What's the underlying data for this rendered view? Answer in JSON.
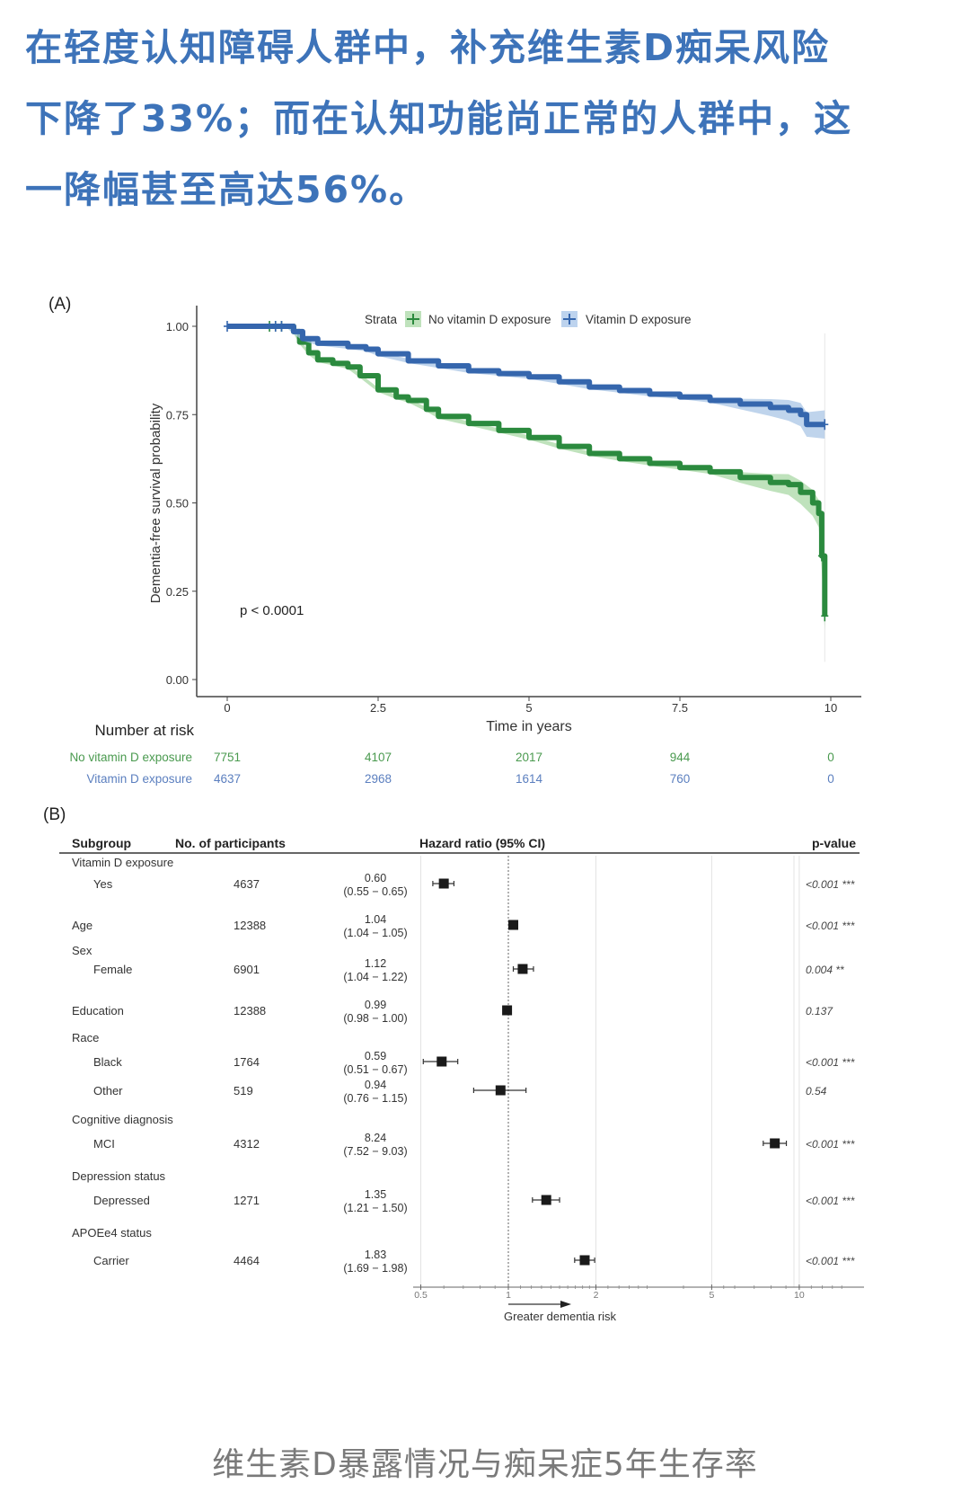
{
  "headline": {
    "lines": [
      "在轻度认知障碍人群中，补充维生素D痴呆风险",
      "下降了33%；而在认知功能尚正常的人群中，这",
      "一降幅甚至高达56%。"
    ]
  },
  "caption": "维生素D暴露情况与痴呆症5年生存率",
  "colors": {
    "headline": "#3d73b9",
    "no_vitd": "#2b8a3e",
    "no_vitd_band": "#a9d8a6",
    "vitd": "#3566ad",
    "vitd_band": "#a9c6e6",
    "risk_no_vitd_text": "#4a9a4f",
    "risk_vitd_text": "#5b7fbf"
  },
  "chart_data": [
    {
      "panel_label": "(A)",
      "type": "line",
      "title": "",
      "xlabel": "Time in years",
      "ylabel": "Dementia-free survival probability",
      "xlim": [
        0,
        10
      ],
      "ylim": [
        0,
        1
      ],
      "xticks": [
        "0",
        "2.5",
        "5",
        "7.5",
        "10"
      ],
      "xtick_values": [
        0,
        2.5,
        5,
        7.5,
        10
      ],
      "yticks": [
        "0.00",
        "0.25",
        "0.50",
        "0.75",
        "1.00"
      ],
      "ytick_values": [
        0,
        0.25,
        0.5,
        0.75,
        1.0
      ],
      "grid": false,
      "legend": {
        "title": "Strata",
        "placement": "top-right",
        "entries": [
          "No vitamin D exposure",
          "Vitamin D exposure"
        ]
      },
      "annotation": "p < 0.0001",
      "series": [
        {
          "name": "No vitamin D exposure",
          "x": [
            0,
            0.6,
            1.0,
            1.1,
            1.2,
            1.35,
            1.5,
            1.75,
            2.0,
            2.2,
            2.5,
            2.8,
            3.0,
            3.3,
            3.5,
            4.0,
            4.5,
            5.0,
            5.5,
            6.0,
            6.5,
            7.0,
            7.5,
            8.0,
            8.5,
            9.0,
            9.3,
            9.5,
            9.7,
            9.8,
            9.85,
            9.9
          ],
          "y": [
            1.0,
            1.0,
            1.0,
            0.985,
            0.955,
            0.925,
            0.905,
            0.895,
            0.885,
            0.86,
            0.82,
            0.8,
            0.79,
            0.765,
            0.745,
            0.725,
            0.705,
            0.685,
            0.66,
            0.64,
            0.625,
            0.612,
            0.6,
            0.588,
            0.572,
            0.558,
            0.552,
            0.53,
            0.5,
            0.47,
            0.35,
            0.18
          ],
          "censor_marks_x": [
            0.7,
            0.8,
            0.9,
            9.85,
            9.9
          ],
          "censor_marks_y": [
            1.0,
            1.0,
            1.0,
            0.35,
            0.18
          ]
        },
        {
          "name": "Vitamin D exposure",
          "x": [
            0,
            0.6,
            1.0,
            1.1,
            1.25,
            1.5,
            2.0,
            2.3,
            2.5,
            3.0,
            3.5,
            4.0,
            4.5,
            5.0,
            5.5,
            6.0,
            6.5,
            7.0,
            7.5,
            8.0,
            8.5,
            9.0,
            9.3,
            9.5,
            9.6,
            9.9
          ],
          "y": [
            1.0,
            1.0,
            1.0,
            0.985,
            0.965,
            0.952,
            0.942,
            0.935,
            0.922,
            0.902,
            0.888,
            0.874,
            0.866,
            0.857,
            0.843,
            0.828,
            0.818,
            0.808,
            0.8,
            0.79,
            0.78,
            0.77,
            0.762,
            0.75,
            0.722,
            0.722
          ],
          "censor_marks_x": [
            0.0,
            0.8,
            0.9,
            9.9
          ],
          "censor_marks_y": [
            1.0,
            1.0,
            1.0,
            0.722
          ]
        }
      ],
      "risk_table": {
        "title": "Number at risk",
        "times": [
          "0",
          "2.5",
          "5",
          "7.5",
          "10"
        ],
        "rows": [
          {
            "label": "No vitamin D exposure",
            "values": [
              "7751",
              "4107",
              "2017",
              "944",
              "0"
            ]
          },
          {
            "label": "Vitamin D exposure",
            "values": [
              "4637",
              "2968",
              "1614",
              "760",
              "0"
            ]
          }
        ]
      }
    },
    {
      "panel_label": "(B)",
      "type": "scatter",
      "title": "",
      "columns": {
        "subgroup": "Subgroup",
        "participants": "No. of participants",
        "hr": "Hazard ratio (95% CI)",
        "pvalue": "p-value"
      },
      "xscale": "log",
      "xlim": [
        0.5,
        15
      ],
      "xticks": [
        "0.5",
        "1",
        "2",
        "5",
        "10"
      ],
      "xtick_values": [
        0.5,
        1,
        2,
        5,
        10
      ],
      "reference_line": 1,
      "xlabel": "Greater dementia risk",
      "rows": [
        {
          "kind": "header",
          "label": "Vitamin D exposure"
        },
        {
          "kind": "item",
          "label": "Yes",
          "indent": true,
          "n": "4637",
          "hr": 0.6,
          "lo": 0.55,
          "hi": 0.65,
          "hr_text": "0.60",
          "ci_text": "(0.55 − 0.65)",
          "p": "<0.001 ***"
        },
        {
          "kind": "item",
          "label": "Age",
          "indent": false,
          "n": "12388",
          "hr": 1.04,
          "lo": 1.04,
          "hi": 1.05,
          "hr_text": "1.04",
          "ci_text": "(1.04 − 1.05)",
          "p": "<0.001 ***"
        },
        {
          "kind": "header",
          "label": "Sex"
        },
        {
          "kind": "item",
          "label": "Female",
          "indent": true,
          "n": "6901",
          "hr": 1.12,
          "lo": 1.04,
          "hi": 1.22,
          "hr_text": "1.12",
          "ci_text": "(1.04 − 1.22)",
          "p": "0.004 **"
        },
        {
          "kind": "item",
          "label": "Education",
          "indent": false,
          "n": "12388",
          "hr": 0.99,
          "lo": 0.98,
          "hi": 1.0,
          "hr_text": "0.99",
          "ci_text": "(0.98 − 1.00)",
          "p": "0.137"
        },
        {
          "kind": "header",
          "label": "Race"
        },
        {
          "kind": "item",
          "label": "Black",
          "indent": true,
          "n": "1764",
          "hr": 0.59,
          "lo": 0.51,
          "hi": 0.67,
          "hr_text": "0.59",
          "ci_text": "(0.51 − 0.67)",
          "p": "<0.001 ***"
        },
        {
          "kind": "item",
          "label": "Other",
          "indent": true,
          "n": "519",
          "hr": 0.94,
          "lo": 0.76,
          "hi": 1.15,
          "hr_text": "0.94",
          "ci_text": "(0.76 − 1.15)",
          "p": "0.54"
        },
        {
          "kind": "header",
          "label": "Cognitive diagnosis"
        },
        {
          "kind": "item",
          "label": "MCI",
          "indent": true,
          "n": "4312",
          "hr": 8.24,
          "lo": 7.52,
          "hi": 9.03,
          "hr_text": "8.24",
          "ci_text": "(7.52 − 9.03)",
          "p": "<0.001 ***"
        },
        {
          "kind": "header",
          "label": "Depression status"
        },
        {
          "kind": "item",
          "label": "Depressed",
          "indent": true,
          "n": "1271",
          "hr": 1.35,
          "lo": 1.21,
          "hi": 1.5,
          "hr_text": "1.35",
          "ci_text": "(1.21 − 1.50)",
          "p": "<0.001 ***"
        },
        {
          "kind": "header",
          "label": "APOEe4 status"
        },
        {
          "kind": "item",
          "label": "Carrier",
          "indent": true,
          "n": "4464",
          "hr": 1.83,
          "lo": 1.69,
          "hi": 1.98,
          "hr_text": "1.83",
          "ci_text": "(1.69 − 1.98)",
          "p": "<0.001 ***"
        }
      ]
    }
  ]
}
